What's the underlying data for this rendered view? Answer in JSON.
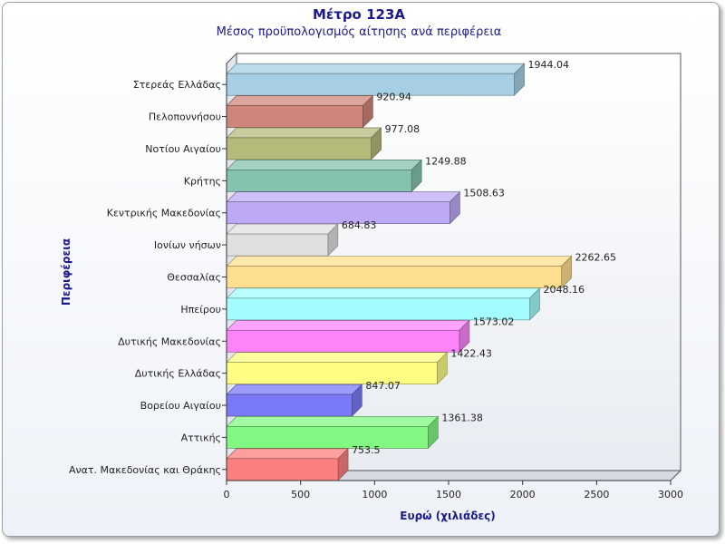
{
  "chart_data": {
    "type": "bar",
    "orientation": "horizontal",
    "style": "3d",
    "title": "Μέτρο 123Α",
    "subtitle": "Μέσος προϋπολογισμός αίτησης ανά περιφέρεια",
    "xlabel": "Ευρώ (χιλιάδες)",
    "ylabel": "Περιφέρεια",
    "xlim": [
      0,
      3000
    ],
    "xticks": [
      0,
      500,
      1000,
      1500,
      2000,
      2500,
      3000
    ],
    "grid": false,
    "legend": "none",
    "categories": [
      "Στερεάς Ελλάδας",
      "Πελοποννήσου",
      "Νοτίου Αιγαίου",
      "Κρήτης",
      "Κεντρικής Μακεδονίας",
      "Ιονίων νήσων",
      "Θεσσαλίας",
      "Ηπείρου",
      "Δυτικής Μακεδονίας",
      "Δυτικής Ελλάδας",
      "Βορείου Αιγαίου",
      "Αττικής",
      "Ανατ. Μακεδονίας και Θράκης"
    ],
    "values": [
      1944.04,
      920.94,
      977.08,
      1249.88,
      1508.63,
      684.83,
      2262.65,
      2048.16,
      1573.02,
      1422.43,
      847.07,
      1361.38,
      753.5
    ],
    "value_labels": [
      "1944.04",
      "920.94",
      "977.08",
      "1249.88",
      "1508.63",
      "684.83",
      "2262.65",
      "2048.16",
      "1573.02",
      "1422.43",
      "847.07",
      "1361.38",
      "753.5"
    ],
    "colors": [
      "#a6cfe3",
      "#cf857c",
      "#b5b97a",
      "#85c2b0",
      "#bda9f5",
      "#e0e0e0",
      "#fedf8f",
      "#a3fcfd",
      "#fb84fb",
      "#fdfd81",
      "#7a7af8",
      "#82f882",
      "#fb7f7f"
    ]
  }
}
